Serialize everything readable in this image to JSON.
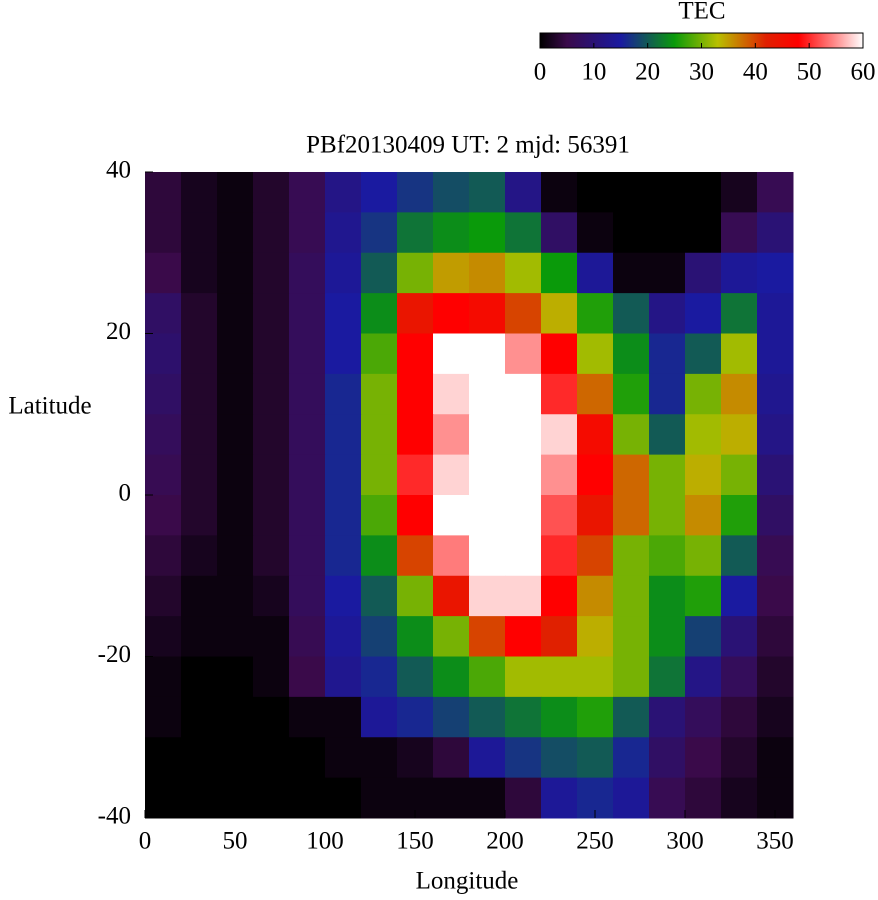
{
  "chart_data": {
    "type": "heatmap",
    "title": "PBf20130409  UT: 2  mjd: 56391",
    "xlabel": "Longitude",
    "ylabel": "Latitude",
    "xlim": [
      0,
      360
    ],
    "ylim": [
      -40,
      40
    ],
    "xticks": [
      0,
      50,
      100,
      150,
      200,
      250,
      300,
      350
    ],
    "yticks": [
      -40,
      -20,
      0,
      20,
      40
    ],
    "x": [
      10,
      30,
      50,
      70,
      90,
      110,
      130,
      150,
      170,
      190,
      210,
      230,
      250,
      270,
      290,
      310,
      330,
      350
    ],
    "y": [
      37.5,
      32.5,
      27.5,
      22.5,
      17.5,
      12.5,
      7.5,
      2.5,
      -2.5,
      -7.5,
      -12.5,
      -17.5,
      -22.5,
      -27.5,
      -32.5,
      -37.5
    ],
    "z": [
      [
        4,
        2,
        1,
        3,
        6,
        12,
        15,
        17,
        19,
        20,
        12,
        1,
        0,
        0,
        0,
        0,
        2,
        6
      ],
      [
        4,
        2,
        1,
        3,
        6,
        13,
        17,
        22,
        24,
        25,
        22,
        8,
        1,
        0,
        0,
        0,
        6,
        10
      ],
      [
        5,
        2,
        1,
        3,
        7,
        14,
        20,
        30,
        35,
        36,
        32,
        25,
        14,
        1,
        1,
        10,
        14,
        15
      ],
      [
        8,
        3,
        1,
        3,
        7,
        15,
        24,
        44,
        48,
        46,
        40,
        34,
        26,
        20,
        12,
        15,
        22,
        14
      ],
      [
        9,
        3,
        1,
        3,
        7,
        15,
        28,
        48,
        60,
        60,
        55,
        48,
        32,
        24,
        16,
        20,
        32,
        14
      ],
      [
        8,
        3,
        1,
        3,
        7,
        16,
        30,
        48,
        58,
        60,
        60,
        50,
        38,
        26,
        16,
        30,
        36,
        13
      ],
      [
        7,
        3,
        1,
        3,
        7,
        16,
        30,
        48,
        55,
        60,
        60,
        58,
        46,
        30,
        20,
        32,
        34,
        12
      ],
      [
        6,
        3,
        1,
        3,
        7,
        16,
        30,
        50,
        58,
        60,
        60,
        55,
        48,
        38,
        30,
        34,
        30,
        10
      ],
      [
        5,
        3,
        1,
        3,
        7,
        16,
        28,
        48,
        60,
        60,
        60,
        52,
        44,
        38,
        30,
        36,
        26,
        8
      ],
      [
        4,
        2,
        1,
        3,
        7,
        16,
        24,
        40,
        54,
        60,
        60,
        50,
        40,
        30,
        28,
        30,
        20,
        6
      ],
      [
        3,
        1,
        1,
        2,
        7,
        15,
        20,
        30,
        44,
        58,
        58,
        48,
        36,
        30,
        24,
        26,
        15,
        5
      ],
      [
        2,
        1,
        1,
        1,
        6,
        14,
        18,
        24,
        30,
        40,
        48,
        42,
        34,
        30,
        24,
        18,
        10,
        4
      ],
      [
        1,
        0,
        0,
        1,
        5,
        13,
        16,
        20,
        24,
        28,
        32,
        32,
        32,
        30,
        22,
        12,
        7,
        3
      ],
      [
        1,
        0,
        0,
        0,
        1,
        1,
        14,
        16,
        18,
        20,
        22,
        24,
        26,
        20,
        10,
        7,
        4,
        2
      ],
      [
        0,
        0,
        0,
        0,
        0,
        1,
        1,
        2,
        4,
        14,
        17,
        19,
        20,
        16,
        8,
        5,
        3,
        1
      ],
      [
        0,
        0,
        0,
        0,
        0,
        0,
        1,
        1,
        1,
        1,
        4,
        14,
        16,
        14,
        6,
        4,
        2,
        1
      ]
    ],
    "colorbar": {
      "title": "TEC",
      "clim": [
        0,
        60
      ],
      "ticks": [
        0,
        10,
        20,
        30,
        40,
        50,
        60
      ]
    },
    "colormap": [
      {
        "value": 0,
        "color": "#000000"
      },
      {
        "value": 5,
        "color": "#3a0a4a"
      },
      {
        "value": 15,
        "color": "#1a1aa0"
      },
      {
        "value": 25,
        "color": "#0a9a0a"
      },
      {
        "value": 33,
        "color": "#b8c000"
      },
      {
        "value": 42,
        "color": "#e02000"
      },
      {
        "value": 48,
        "color": "#ff0000"
      },
      {
        "value": 55,
        "color": "#ff9090"
      },
      {
        "value": 60,
        "color": "#ffffff"
      }
    ]
  }
}
